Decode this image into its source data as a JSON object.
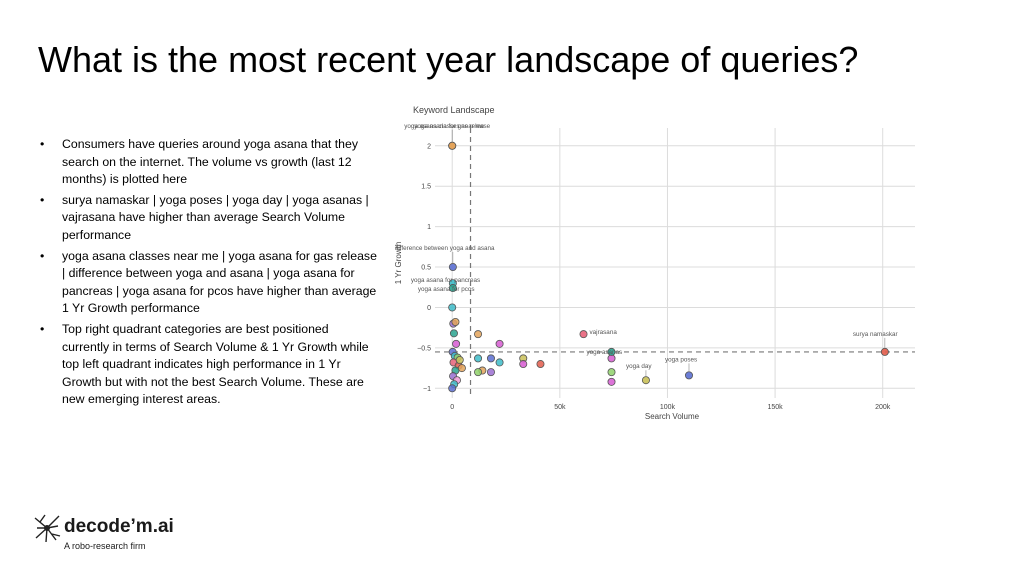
{
  "slide": {
    "title": "What is the most recent year landscape of queries?",
    "bullets": [
      "Consumers have queries around yoga asana that they search on the internet. The volume vs growth (last 12 months) is plotted here",
      "surya namaskar | yoga poses | yoga day | yoga asanas | vajrasana have higher than average Search Volume performance",
      "yoga asana classes near me | yoga asana for gas release | difference between yoga and asana | yoga asana for pancreas | yoga asana for pcos have higher than average 1 Yr Growth performance",
      "Top right quadrant categories are best positioned currently in terms of Search Volume & 1 Yr Growth while top left quadrant indicates high performance in 1 Yr Growth but with not the best Search Volume. These are new emerging interest areas."
    ]
  },
  "logo": {
    "name": "decode’m.ai",
    "tagline": "A robo-research firm"
  },
  "chart_data": {
    "type": "scatter",
    "title": "Keyword Landscape",
    "xlabel": "Search Volume",
    "ylabel": "1 Yr Growth",
    "xlim": [
      -8000,
      215000
    ],
    "ylim": [
      -1.12,
      2.22
    ],
    "x_ticks": [
      0,
      50000,
      100000,
      150000,
      200000
    ],
    "x_tick_labels": [
      "0",
      "50k",
      "100k",
      "150k",
      "200k"
    ],
    "y_ticks": [
      -1,
      -0.5,
      0,
      0.5,
      1,
      1.5,
      2
    ],
    "y_tick_labels": [
      "−1",
      "−0.5",
      "0",
      "0.5",
      "1",
      "1.5",
      "2"
    ],
    "grid": true,
    "reference_lines": {
      "x": 8500,
      "y": -0.55
    },
    "labeled_points": [
      {
        "label": "yoga asana classes near me",
        "x": 0,
        "y": 2.0,
        "color": "#e3a35a"
      },
      {
        "label": "yoga asana for gas release",
        "x": 0,
        "y": 2.0,
        "color": "#e3a35a"
      },
      {
        "label": "difference between yoga and asana",
        "x": 300,
        "y": 0.5,
        "color": "#5b6fd1"
      },
      {
        "label": "yoga asana for pancreas",
        "x": 300,
        "y": 0.3,
        "color": "#3dbcc9"
      },
      {
        "label": "yoga asana for pcos",
        "x": 300,
        "y": 0.24,
        "color": "#2aa38f"
      },
      {
        "label": "vajrasana",
        "x": 61000,
        "y": -0.33,
        "color": "#e8637a"
      },
      {
        "label": "yoga asanas",
        "x": 74000,
        "y": -0.55,
        "color": "#2aa38f"
      },
      {
        "label": "yoga day",
        "x": 90000,
        "y": -0.9,
        "color": "#c9c058"
      },
      {
        "label": "yoga poses",
        "x": 110000,
        "y": -0.84,
        "color": "#5b6fd1"
      },
      {
        "label": "surya namaskar",
        "x": 201000,
        "y": -0.55,
        "color": "#e25c4b"
      }
    ],
    "points": [
      {
        "x": 0,
        "y": 0.0,
        "color": "#3dbcc9"
      },
      {
        "x": 500,
        "y": -0.2,
        "color": "#9b6fd1"
      },
      {
        "x": 1500,
        "y": -0.18,
        "color": "#e3a35a"
      },
      {
        "x": 800,
        "y": -0.32,
        "color": "#2aa38f"
      },
      {
        "x": 1800,
        "y": -0.45,
        "color": "#d65ad1"
      },
      {
        "x": 200,
        "y": -0.55,
        "color": "#5b6fd1"
      },
      {
        "x": 1200,
        "y": -0.6,
        "color": "#3dbcc9"
      },
      {
        "x": 2500,
        "y": -0.62,
        "color": "#8fd16a"
      },
      {
        "x": 600,
        "y": -0.68,
        "color": "#e8637a"
      },
      {
        "x": 3000,
        "y": -0.72,
        "color": "#e25c4b"
      },
      {
        "x": 1500,
        "y": -0.78,
        "color": "#2aa38f"
      },
      {
        "x": 400,
        "y": -0.85,
        "color": "#9b6fd1"
      },
      {
        "x": 2200,
        "y": -0.9,
        "color": "#f29ad9"
      },
      {
        "x": 900,
        "y": -0.95,
        "color": "#3dbcc9"
      },
      {
        "x": 0,
        "y": -1.0,
        "color": "#5b6fd1"
      },
      {
        "x": 3500,
        "y": -0.65,
        "color": "#c9c058"
      },
      {
        "x": 4500,
        "y": -0.75,
        "color": "#e3a35a"
      },
      {
        "x": 12000,
        "y": -0.33,
        "color": "#e3a35a"
      },
      {
        "x": 22000,
        "y": -0.45,
        "color": "#d65ad1"
      },
      {
        "x": 12000,
        "y": -0.63,
        "color": "#3dbcc9"
      },
      {
        "x": 18000,
        "y": -0.63,
        "color": "#5b6fd1"
      },
      {
        "x": 22000,
        "y": -0.68,
        "color": "#3dbcc9"
      },
      {
        "x": 14000,
        "y": -0.78,
        "color": "#e3a35a"
      },
      {
        "x": 18000,
        "y": -0.8,
        "color": "#9b6fd1"
      },
      {
        "x": 12000,
        "y": -0.8,
        "color": "#8fd16a"
      },
      {
        "x": 33000,
        "y": -0.63,
        "color": "#c9c058"
      },
      {
        "x": 33000,
        "y": -0.7,
        "color": "#d65ad1"
      },
      {
        "x": 41000,
        "y": -0.7,
        "color": "#e25c4b"
      },
      {
        "x": 74000,
        "y": -0.63,
        "color": "#d65ad1"
      },
      {
        "x": 74000,
        "y": -0.8,
        "color": "#8fd16a"
      },
      {
        "x": 74000,
        "y": -0.92,
        "color": "#d65ad1"
      }
    ]
  }
}
